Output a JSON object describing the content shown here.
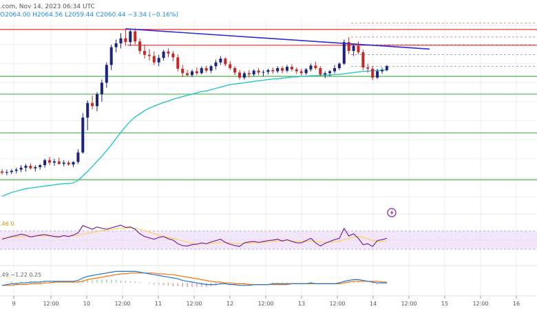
{
  "header": {
    "source_fragment": ".com, Nov 14, 2023 06:34 UTC",
    "ohlc": "O2064.00  H2064.56  L2059.44  C2060.44  −3.34 (−0.16%)"
  },
  "chart_data": [
    {
      "type": "candlestick",
      "title": "",
      "y_axis_labels": "not visible (cropped on right)",
      "x_tick_labels": [
        "9",
        "12:00",
        "10",
        "12:00",
        "11",
        "12:00",
        "12",
        "12:00",
        "13",
        "12:00",
        "14",
        "12:00",
        "15",
        "12:00",
        "16"
      ],
      "grid": true,
      "candles_ohlc": [
        [
          1900,
          1904,
          1895,
          1898
        ],
        [
          1898,
          1903,
          1894,
          1899
        ],
        [
          1899,
          1904,
          1896,
          1901
        ],
        [
          1901,
          1906,
          1897,
          1903
        ],
        [
          1903,
          1910,
          1899,
          1906
        ],
        [
          1906,
          1912,
          1900,
          1909
        ],
        [
          1909,
          1913,
          1903,
          1905
        ],
        [
          1905,
          1910,
          1900,
          1907
        ],
        [
          1907,
          1912,
          1903,
          1910
        ],
        [
          1910,
          1920,
          1906,
          1918
        ],
        [
          1918,
          1923,
          1910,
          1914
        ],
        [
          1914,
          1920,
          1909,
          1916
        ],
        [
          1916,
          1922,
          1911,
          1912
        ],
        [
          1912,
          1918,
          1908,
          1914
        ],
        [
          1914,
          1917,
          1909,
          1911
        ],
        [
          1911,
          1916,
          1907,
          1915
        ],
        [
          1915,
          1935,
          1912,
          1930
        ],
        [
          1930,
          1992,
          1928,
          1985
        ],
        [
          1985,
          2012,
          1965,
          2008
        ],
        [
          2008,
          2020,
          1998,
          2003
        ],
        [
          2003,
          2025,
          1995,
          2022
        ],
        [
          2022,
          2045,
          2010,
          2040
        ],
        [
          2040,
          2072,
          2032,
          2068
        ],
        [
          2068,
          2100,
          2060,
          2096
        ],
        [
          2096,
          2108,
          2088,
          2102
        ],
        [
          2102,
          2118,
          2094,
          2110
        ],
        [
          2110,
          2124,
          2098,
          2104
        ],
        [
          2104,
          2125,
          2098,
          2121
        ],
        [
          2121,
          2126,
          2100,
          2105
        ],
        [
          2105,
          2110,
          2085,
          2090
        ],
        [
          2090,
          2100,
          2078,
          2084
        ],
        [
          2084,
          2093,
          2075,
          2082
        ],
        [
          2082,
          2089,
          2068,
          2072
        ],
        [
          2072,
          2084,
          2066,
          2079
        ],
        [
          2079,
          2092,
          2075,
          2089
        ],
        [
          2089,
          2094,
          2080,
          2086
        ],
        [
          2086,
          2090,
          2074,
          2080
        ],
        [
          2080,
          2085,
          2058,
          2062
        ],
        [
          2062,
          2068,
          2049,
          2055
        ],
        [
          2055,
          2060,
          2050,
          2052
        ],
        [
          2052,
          2061,
          2049,
          2058
        ],
        [
          2058,
          2064,
          2052,
          2055
        ],
        [
          2055,
          2066,
          2053,
          2063
        ],
        [
          2063,
          2067,
          2056,
          2059
        ],
        [
          2059,
          2068,
          2055,
          2066
        ],
        [
          2066,
          2076,
          2061,
          2072
        ],
        [
          2072,
          2082,
          2068,
          2078
        ],
        [
          2078,
          2080,
          2066,
          2069
        ],
        [
          2069,
          2074,
          2060,
          2063
        ],
        [
          2063,
          2066,
          2052,
          2056
        ],
        [
          2056,
          2060,
          2045,
          2048
        ],
        [
          2048,
          2058,
          2045,
          2055
        ],
        [
          2055,
          2060,
          2048,
          2053
        ],
        [
          2053,
          2061,
          2050,
          2059
        ],
        [
          2059,
          2063,
          2052,
          2056
        ],
        [
          2056,
          2060,
          2050,
          2057
        ],
        [
          2057,
          2062,
          2053,
          2060
        ],
        [
          2060,
          2064,
          2054,
          2058
        ],
        [
          2058,
          2066,
          2055,
          2063
        ],
        [
          2063,
          2066,
          2055,
          2059
        ],
        [
          2059,
          2068,
          2056,
          2065
        ],
        [
          2065,
          2069,
          2058,
          2061
        ],
        [
          2061,
          2064,
          2054,
          2058
        ],
        [
          2058,
          2062,
          2051,
          2055
        ],
        [
          2055,
          2063,
          2052,
          2061
        ],
        [
          2061,
          2070,
          2058,
          2067
        ],
        [
          2067,
          2073,
          2060,
          2063
        ],
        [
          2063,
          2066,
          2050,
          2053
        ],
        [
          2053,
          2058,
          2047,
          2055
        ],
        [
          2055,
          2060,
          2050,
          2058
        ],
        [
          2058,
          2068,
          2055,
          2063
        ],
        [
          2063,
          2072,
          2060,
          2070
        ],
        [
          2070,
          2108,
          2068,
          2104
        ],
        [
          2104,
          2112,
          2085,
          2090
        ],
        [
          2090,
          2102,
          2082,
          2098
        ],
        [
          2098,
          2105,
          2085,
          2088
        ],
        [
          2088,
          2092,
          2060,
          2064
        ],
        [
          2064,
          2070,
          2056,
          2062
        ],
        [
          2062,
          2066,
          2044,
          2048
        ],
        [
          2048,
          2062,
          2046,
          2058
        ],
        [
          2058,
          2064,
          2054,
          2060
        ],
        [
          2060,
          2068,
          2058,
          2066
        ]
      ],
      "moving_average": [
        1861,
        1864,
        1867,
        1869,
        1871,
        1873,
        1874,
        1875,
        1876,
        1877,
        1878,
        1879,
        1880,
        1881,
        1881,
        1882,
        1886,
        1893,
        1900,
        1908,
        1916,
        1924,
        1933,
        1942,
        1952,
        1962,
        1971,
        1979,
        1986,
        1991,
        1996,
        2000,
        2003,
        2006,
        2009,
        2011,
        2014,
        2016,
        2018,
        2020,
        2022,
        2024,
        2026,
        2027,
        2029,
        2031,
        2033,
        2035,
        2037,
        2038,
        2039,
        2040,
        2041,
        2042,
        2043,
        2044,
        2045,
        2046,
        2046,
        2047,
        2048,
        2049,
        2049,
        2050,
        2050,
        2051,
        2051,
        2052,
        2052,
        2052,
        2053,
        2053,
        2054,
        2055,
        2056,
        2057,
        2058,
        2058,
        2059,
        2059,
        2060,
        2060
      ],
      "horizontal_levels": [
        2124,
        2099,
        2050,
        2022,
        1961,
        1887
      ],
      "trendline": {
        "from": {
          "index": 26,
          "value": 2125
        },
        "to": {
          "index": 90,
          "value": 2093
        }
      },
      "dashed_levels": [
        2134,
        2124,
        2112,
        2100,
        2084,
        2066
      ]
    },
    {
      "type": "line",
      "title": "",
      "label_fragment": ".46  0",
      "ylim": [
        0,
        100
      ],
      "band": [
        30,
        70
      ],
      "series_rsi": [
        52,
        55,
        58,
        60,
        63,
        61,
        57,
        59,
        61,
        62,
        60,
        58,
        57,
        60,
        58,
        61,
        66,
        82,
        78,
        74,
        79,
        76,
        74,
        77,
        80,
        83,
        78,
        79,
        74,
        64,
        58,
        55,
        52,
        56,
        58,
        53,
        50,
        42,
        38,
        37,
        40,
        41,
        44,
        42,
        46,
        49,
        52,
        45,
        41,
        38,
        36,
        44,
        46,
        47,
        45,
        47,
        49,
        50,
        52,
        48,
        51,
        47,
        44,
        44,
        49,
        54,
        44,
        37,
        43,
        47,
        51,
        54,
        76,
        59,
        64,
        54,
        40,
        42,
        36,
        49,
        51,
        54
      ],
      "series_rsi_ma": [
        55,
        55,
        56,
        57,
        58,
        58,
        58,
        59,
        59,
        59,
        59,
        59,
        59,
        59,
        59,
        59,
        60,
        63,
        65,
        67,
        69,
        71,
        72,
        74,
        75,
        76,
        76,
        77,
        76,
        74,
        71,
        68,
        64,
        61,
        58,
        56,
        54,
        51,
        48,
        45,
        43,
        42,
        42,
        42,
        43,
        44,
        45,
        45,
        44,
        43,
        42,
        43,
        43,
        44,
        44,
        45,
        46,
        47,
        48,
        48,
        49,
        48,
        47,
        47,
        47,
        48,
        47,
        46,
        45,
        45,
        46,
        47,
        51,
        54,
        57,
        58,
        56,
        53,
        49,
        47,
        47,
        48
      ]
    },
    {
      "type": "bar",
      "title": "",
      "label_fragment": ".49  −1.22  0.25",
      "ylim": [
        -14,
        16
      ],
      "macd": [
        -3,
        -2,
        -1,
        -1,
        0,
        0,
        1,
        1,
        1,
        2,
        2,
        2,
        2,
        2,
        2,
        2,
        3,
        6,
        8,
        9,
        10,
        11,
        12,
        13,
        14,
        14,
        14,
        14,
        14,
        13,
        12,
        11,
        10,
        9,
        8,
        7,
        6,
        5,
        3,
        2,
        1,
        0,
        -1,
        -2,
        -2,
        -2,
        -1,
        -1,
        -2,
        -2,
        -3,
        -3,
        -3,
        -2,
        -2,
        -2,
        -2,
        -1,
        -1,
        -1,
        -1,
        -1,
        -1,
        -1,
        -1,
        0,
        -1,
        -1,
        -1,
        -1,
        -1,
        0,
        2,
        3,
        4,
        4,
        3,
        2,
        1,
        0,
        0,
        0
      ],
      "signal": [
        -3,
        -3,
        -3,
        -2,
        -2,
        -2,
        -1,
        -1,
        -1,
        0,
        0,
        1,
        1,
        1,
        1,
        1,
        1,
        2,
        4,
        5,
        6,
        7,
        8,
        9,
        10,
        11,
        11,
        12,
        12,
        12,
        12,
        12,
        12,
        11,
        11,
        10,
        10,
        9,
        8,
        7,
        6,
        5,
        4,
        3,
        2,
        1,
        1,
        0,
        0,
        -1,
        -1,
        -1,
        -2,
        -2,
        -2,
        -2,
        -2,
        -2,
        -2,
        -2,
        -2,
        -1,
        -1,
        -1,
        -1,
        -1,
        -1,
        -1,
        -1,
        -1,
        -1,
        -1,
        0,
        1,
        2,
        2,
        2,
        2,
        2,
        2,
        1,
        1
      ],
      "histogram": [
        0,
        1,
        2,
        1,
        2,
        2,
        2,
        2,
        2,
        2,
        2,
        1,
        1,
        1,
        1,
        1,
        2,
        4,
        4,
        4,
        4,
        4,
        4,
        4,
        4,
        3,
        3,
        2,
        2,
        1,
        0,
        -1,
        -2,
        -2,
        -3,
        -3,
        -4,
        -4,
        -5,
        -5,
        -5,
        -5,
        -5,
        -5,
        -4,
        -3,
        -2,
        -1,
        -2,
        -1,
        -2,
        -2,
        -1,
        0,
        0,
        0,
        0,
        1,
        1,
        1,
        1,
        0,
        0,
        0,
        0,
        1,
        0,
        0,
        0,
        0,
        0,
        1,
        2,
        2,
        2,
        2,
        1,
        0,
        -1,
        -2,
        -1,
        -1
      ]
    }
  ],
  "colors": {
    "bullish": "#1a237e",
    "bearish": "#c62828",
    "moving_average": "#26c6c6",
    "support_level": "#4caf50",
    "resistance_level": "#ff2a2a",
    "trendline": "#2b2bd6",
    "rsi_line": "#7b1fa2",
    "rsi_ma": "#ffd54f",
    "rsi_band": "#ead7f7",
    "macd_line": "#1976d2",
    "signal_line": "#ff6f00",
    "histogram_positive": "#a5d6a7",
    "histogram_negative": "#ef9a9a",
    "background": "#ffffff",
    "grid": "#eeeeee"
  },
  "icons": {
    "alert": "lightning-bolt-icon"
  }
}
